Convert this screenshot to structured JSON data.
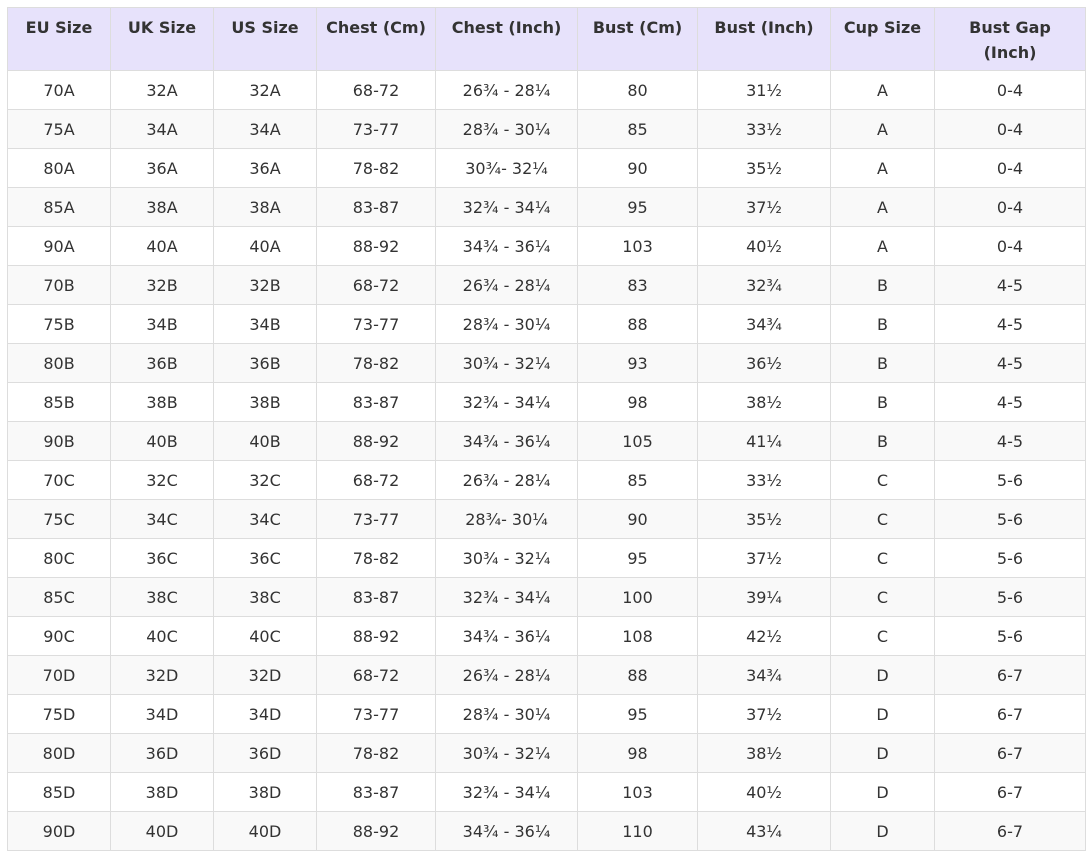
{
  "table": {
    "header": [
      "EU Size",
      "UK Size",
      "US Size",
      "Chest (Cm)",
      "Chest (Inch)",
      "Bust (Cm)",
      "Bust (Inch)",
      "Cup Size",
      "Bust Gap (Inch)"
    ],
    "rows": [
      [
        "70A",
        "32A",
        "32A",
        "68-72",
        "26¾ - 28¼",
        "80",
        "31½",
        "A",
        "0-4"
      ],
      [
        "75A",
        "34A",
        "34A",
        "73-77",
        "28¾ - 30¼",
        "85",
        "33½",
        "A",
        "0-4"
      ],
      [
        "80A",
        "36A",
        "36A",
        "78-82",
        "30¾-  32¼",
        "90",
        "35½",
        "A",
        "0-4"
      ],
      [
        "85A",
        "38A",
        "38A",
        "83-87",
        "32¾ - 34¼",
        "95",
        "37½",
        "A",
        "0-4"
      ],
      [
        "90A",
        "40A",
        "40A",
        "88-92",
        "34¾ - 36¼",
        "103",
        "40½",
        "A",
        "0-4"
      ],
      [
        "70B",
        "32B",
        "32B",
        "68-72",
        "26¾ - 28¼",
        "83",
        "32¾",
        "B",
        "4-5"
      ],
      [
        "75B",
        "34B",
        "34B",
        "73-77",
        "28¾ - 30¼",
        "88",
        "34¾",
        "B",
        "4-5"
      ],
      [
        "80B",
        "36B",
        "36B",
        "78-82",
        "30¾ - 32¼",
        "93",
        "36½",
        "B",
        "4-5"
      ],
      [
        "85B",
        "38B",
        "38B",
        "83-87",
        "32¾ - 34¼",
        "98",
        "38½",
        "B",
        "4-5"
      ],
      [
        "90B",
        "40B",
        "40B",
        "88-92",
        "34¾ - 36¼",
        "105",
        "41¼",
        "B",
        "4-5"
      ],
      [
        "70C",
        "32C",
        "32C",
        "68-72",
        "26¾ - 28¼",
        "85",
        "33½",
        "C",
        "5-6"
      ],
      [
        "75C",
        "34C",
        "34C",
        "73-77",
        "28¾-  30¼",
        "90",
        "35½",
        "C",
        "5-6"
      ],
      [
        "80C",
        "36C",
        "36C",
        "78-82",
        "30¾ - 32¼",
        "95",
        "37½",
        "C",
        "5-6"
      ],
      [
        "85C",
        "38C",
        "38C",
        "83-87",
        "32¾ - 34¼",
        "100",
        "39¼",
        "C",
        "5-6"
      ],
      [
        "90C",
        "40C",
        "40C",
        "88-92",
        "34¾ - 36¼",
        "108",
        "42½",
        "C",
        "5-6"
      ],
      [
        "70D",
        "32D",
        "32D",
        "68-72",
        "26¾ - 28¼",
        "88",
        "34¾",
        "D",
        "6-7"
      ],
      [
        "75D",
        "34D",
        "34D",
        "73-77",
        "28¾ - 30¼",
        "95",
        "37½",
        "D",
        "6-7"
      ],
      [
        "80D",
        "36D",
        "36D",
        "78-82",
        "30¾ - 32¼",
        "98",
        "38½",
        "D",
        "6-7"
      ],
      [
        "85D",
        "38D",
        "38D",
        "83-87",
        "32¾ - 34¼",
        "103",
        "40½",
        "D",
        "6-7"
      ],
      [
        "90D",
        "40D",
        "40D",
        "88-92",
        "34¾ - 36¼",
        "110",
        "43¼",
        "D",
        "6-7"
      ]
    ]
  }
}
